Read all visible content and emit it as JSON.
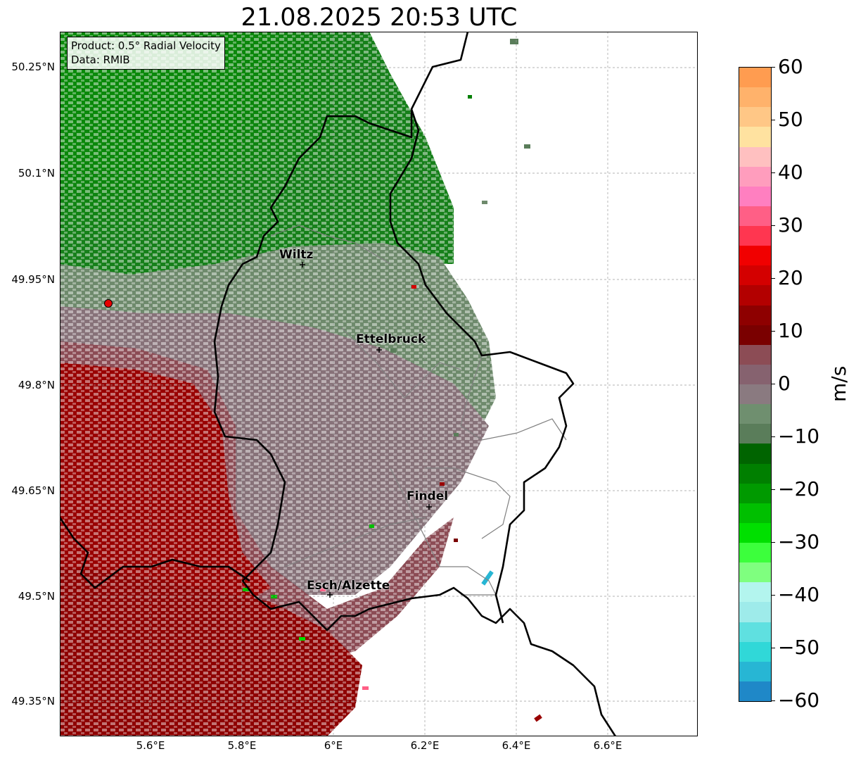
{
  "title": "21.08.2025 20:53 UTC",
  "info_box": {
    "product": "Product: 0.5° Radial Velocity",
    "data": "Data: RMIB"
  },
  "map": {
    "lat_labels": [
      "50.25°N",
      "50.1°N",
      "49.95°N",
      "49.8°N",
      "49.65°N",
      "49.5°N",
      "49.35°N"
    ],
    "lon_labels": [
      "5.6°E",
      "5.8°E",
      "6°E",
      "6.2°E",
      "6.4°E",
      "6.6°E"
    ],
    "cities": [
      {
        "name": "Wiltz"
      },
      {
        "name": "Ettelbruck"
      },
      {
        "name": "Findel"
      },
      {
        "name": "Esch/Alzette"
      }
    ],
    "radar_site_color": "#e60000"
  },
  "colorbar": {
    "unit": "m/s",
    "tick_labels": [
      "60",
      "50",
      "40",
      "30",
      "20",
      "10",
      "0",
      "−10",
      "−20",
      "−30",
      "−40",
      "−50",
      "−60"
    ],
    "colors": [
      "#ff9c50",
      "#ffb26b",
      "#ffc786",
      "#ffe2a0",
      "#ffc0c0",
      "#ff9dbd",
      "#ff7fc0",
      "#ff5f86",
      "#ff3650",
      "#f10000",
      "#d40000",
      "#b30000",
      "#8e0000",
      "#7a0000",
      "#8c4c55",
      "#86626f",
      "#8a7a80",
      "#6f8f6f",
      "#5a7d5a",
      "#006400",
      "#007f00",
      "#009a00",
      "#00bf00",
      "#00e000",
      "#3cff3c",
      "#7fff7f",
      "#b3f5ee",
      "#9eebea",
      "#5fe0e0",
      "#30d8d8",
      "#27b6d4",
      "#1f88c8"
    ]
  }
}
